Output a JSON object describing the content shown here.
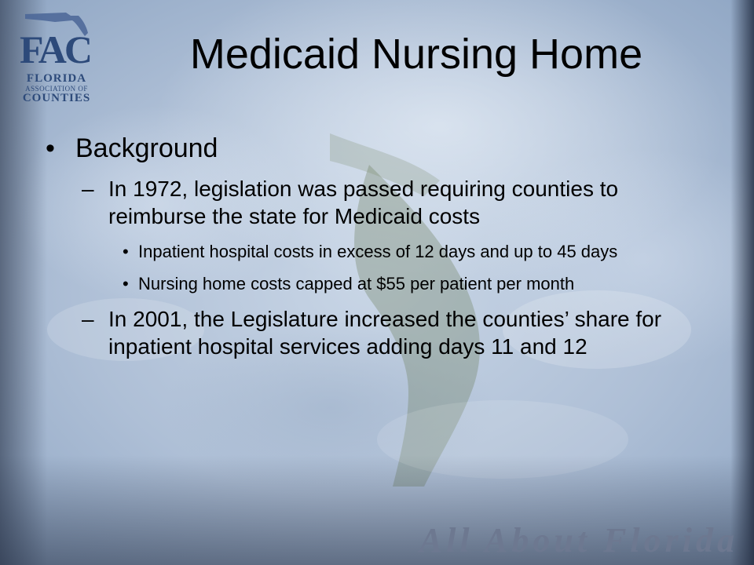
{
  "logo": {
    "mark": "FAC",
    "line1": "FLORIDA",
    "line2": "ASSOCIATION OF",
    "line3": "COUNTIES",
    "icon": "florida-map-icon",
    "color": "#2d4a7a"
  },
  "title": "Medicaid Nursing Home",
  "content": {
    "heading": {
      "bullet": "•",
      "text": "Background"
    },
    "point1": {
      "bullet": "–",
      "text": "In 1972, legislation was passed requiring counties to reimburse the state for Medicaid costs",
      "sub": [
        {
          "bullet": "•",
          "text": "Inpatient hospital costs in excess of 12 days and up to 45 days"
        },
        {
          "bullet": "•",
          "text": "Nursing home costs capped at $55 per patient per month"
        }
      ]
    },
    "point2": {
      "bullet": "–",
      "text": "In 2001, the Legislature increased the counties’ share for inpatient hospital services adding days 11 and 12"
    }
  },
  "tagline": "All About Florida"
}
